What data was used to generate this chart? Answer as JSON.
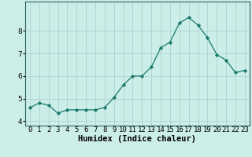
{
  "x": [
    0,
    1,
    2,
    3,
    4,
    5,
    6,
    7,
    8,
    9,
    10,
    11,
    12,
    13,
    14,
    15,
    16,
    17,
    18,
    19,
    20,
    21,
    22,
    23
  ],
  "y": [
    4.6,
    4.8,
    4.7,
    4.35,
    4.5,
    4.5,
    4.5,
    4.5,
    4.6,
    5.05,
    5.6,
    6.0,
    6.0,
    6.4,
    7.25,
    7.5,
    8.35,
    8.6,
    8.25,
    7.7,
    6.95,
    6.7,
    6.15,
    6.25
  ],
  "line_color": "#1a7a6e",
  "marker": "D",
  "marker_size": 2.2,
  "bg_color": "#cceee8",
  "grid_color": "#a8cccc",
  "xlabel": "Humidex (Indice chaleur)",
  "xlabel_fontsize": 7.5,
  "tick_fontsize": 6.5,
  "ylim": [
    3.8,
    9.3
  ],
  "yticks": [
    4,
    5,
    6,
    7,
    8
  ],
  "xlim": [
    -0.5,
    23.5
  ]
}
